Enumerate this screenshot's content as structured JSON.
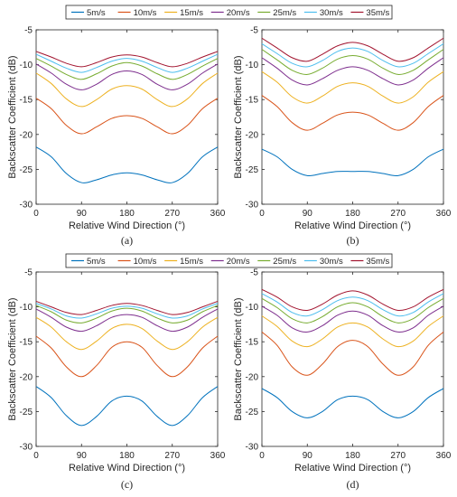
{
  "legends": [
    {
      "entries": [
        "5m/s",
        "10m/s",
        "15m/s",
        "20m/s",
        "25m/s",
        "30m/s",
        "35m/s"
      ],
      "colors": [
        "#0072BD",
        "#D95319",
        "#EDB120",
        "#7E2F8E",
        "#77AC30",
        "#4DBEEE",
        "#A2142F"
      ]
    },
    {
      "entries": [
        "5m/s",
        "10m/s",
        "15m/s",
        "20m/s",
        "25m/s",
        "30m/s",
        "35m/s"
      ],
      "colors": [
        "#0072BD",
        "#D95319",
        "#EDB120",
        "#7E2F8E",
        "#77AC30",
        "#4DBEEE",
        "#A2142F"
      ]
    }
  ],
  "chart_data": [
    {
      "type": "line",
      "panel": "a",
      "caption": "(a)",
      "xlabel": "Relative Wind Direction (°)",
      "ylabel": "Backscatter Coefficient (dB)",
      "xlim": [
        0,
        360
      ],
      "ylim": [
        -30,
        -5
      ],
      "xticks": [
        0,
        90,
        180,
        270,
        360
      ],
      "yticks": [
        -30,
        -25,
        -20,
        -15,
        -10,
        -5
      ],
      "x": [
        0,
        30,
        60,
        90,
        120,
        150,
        180,
        210,
        240,
        270,
        300,
        330,
        360
      ],
      "series": [
        {
          "name": "5m/s",
          "values": [
            -21.8,
            -23.2,
            -25.6,
            -26.9,
            -26.5,
            -25.8,
            -25.5,
            -25.8,
            -26.5,
            -26.9,
            -25.6,
            -23.2,
            -21.8
          ]
        },
        {
          "name": "10m/s",
          "values": [
            -14.8,
            -16.3,
            -18.7,
            -19.9,
            -18.9,
            -17.7,
            -17.3,
            -17.7,
            -18.9,
            -19.9,
            -18.7,
            -16.3,
            -14.8
          ]
        },
        {
          "name": "15m/s",
          "values": [
            -11.2,
            -12.7,
            -14.9,
            -16.0,
            -15.0,
            -13.5,
            -13.0,
            -13.5,
            -15.0,
            -16.0,
            -14.9,
            -12.7,
            -11.2
          ]
        },
        {
          "name": "20m/s",
          "values": [
            -9.9,
            -11.2,
            -12.8,
            -13.6,
            -12.8,
            -11.4,
            -10.9,
            -11.4,
            -12.8,
            -13.6,
            -12.8,
            -11.2,
            -9.9
          ]
        },
        {
          "name": "25m/s",
          "values": [
            -9.1,
            -10.2,
            -11.4,
            -12.1,
            -11.3,
            -10.2,
            -9.7,
            -10.2,
            -11.3,
            -12.1,
            -11.4,
            -10.2,
            -9.1
          ]
        },
        {
          "name": "30m/s",
          "values": [
            -8.5,
            -9.5,
            -10.5,
            -11.1,
            -10.4,
            -9.5,
            -9.1,
            -9.5,
            -10.4,
            -11.1,
            -10.5,
            -9.5,
            -8.5
          ]
        },
        {
          "name": "35m/s",
          "values": [
            -8.1,
            -8.9,
            -9.8,
            -10.3,
            -9.7,
            -8.9,
            -8.6,
            -8.9,
            -9.7,
            -10.3,
            -9.8,
            -8.9,
            -8.1
          ]
        }
      ]
    },
    {
      "type": "line",
      "panel": "b",
      "caption": "(b)",
      "xlabel": "Relative Wind Direction (°)",
      "ylabel": "Backscatter Coefficient (dB)",
      "xlim": [
        0,
        360
      ],
      "ylim": [
        -30,
        -5
      ],
      "xticks": [
        0,
        90,
        180,
        270,
        360
      ],
      "yticks": [
        -30,
        -25,
        -20,
        -15,
        -10,
        -5
      ],
      "x": [
        0,
        30,
        60,
        90,
        120,
        150,
        180,
        210,
        240,
        270,
        300,
        330,
        360
      ],
      "series": [
        {
          "name": "5m/s",
          "values": [
            -22.1,
            -23.2,
            -25.0,
            -25.9,
            -25.6,
            -25.3,
            -25.3,
            -25.3,
            -25.6,
            -25.9,
            -25.0,
            -23.2,
            -22.1
          ]
        },
        {
          "name": "10m/s",
          "values": [
            -14.4,
            -16.0,
            -18.3,
            -19.4,
            -18.4,
            -17.2,
            -16.8,
            -17.2,
            -18.4,
            -19.4,
            -18.3,
            -16.0,
            -14.4
          ]
        },
        {
          "name": "15m/s",
          "values": [
            -11.0,
            -12.5,
            -14.6,
            -15.5,
            -14.5,
            -13.1,
            -12.6,
            -13.1,
            -14.5,
            -15.5,
            -14.6,
            -12.5,
            -11.0
          ]
        },
        {
          "name": "20m/s",
          "values": [
            -9.0,
            -10.5,
            -12.2,
            -12.9,
            -12.0,
            -10.8,
            -10.3,
            -10.8,
            -12.0,
            -12.9,
            -12.2,
            -10.5,
            -9.0
          ]
        },
        {
          "name": "25m/s",
          "values": [
            -7.8,
            -9.3,
            -10.8,
            -11.4,
            -10.5,
            -9.2,
            -8.7,
            -9.2,
            -10.5,
            -11.4,
            -10.8,
            -9.3,
            -7.8
          ]
        },
        {
          "name": "30m/s",
          "values": [
            -7.0,
            -8.4,
            -9.8,
            -10.3,
            -9.4,
            -8.1,
            -7.6,
            -8.1,
            -9.4,
            -10.3,
            -9.8,
            -8.4,
            -7.0
          ]
        },
        {
          "name": "35m/s",
          "values": [
            -6.2,
            -7.6,
            -9.0,
            -9.5,
            -8.5,
            -7.3,
            -6.8,
            -7.3,
            -8.5,
            -9.5,
            -9.0,
            -7.6,
            -6.2
          ]
        }
      ]
    },
    {
      "type": "line",
      "panel": "c",
      "caption": "(c)",
      "xlabel": "Relative Wind Direction (°)",
      "ylabel": "Backscatter Coefficient (dB)",
      "xlim": [
        0,
        360
      ],
      "ylim": [
        -30,
        -5
      ],
      "xticks": [
        0,
        90,
        180,
        270,
        360
      ],
      "yticks": [
        -30,
        -25,
        -20,
        -15,
        -10,
        -5
      ],
      "x": [
        0,
        30,
        60,
        90,
        120,
        150,
        180,
        210,
        240,
        270,
        300,
        330,
        360
      ],
      "series": [
        {
          "name": "5m/s",
          "values": [
            -21.4,
            -23.0,
            -25.6,
            -27.0,
            -25.7,
            -23.5,
            -22.8,
            -23.5,
            -25.7,
            -27.0,
            -25.6,
            -23.0,
            -21.4
          ]
        },
        {
          "name": "10m/s",
          "values": [
            -14.2,
            -15.9,
            -18.6,
            -20.0,
            -18.4,
            -15.8,
            -15.0,
            -15.8,
            -18.4,
            -20.0,
            -18.6,
            -15.9,
            -14.2
          ]
        },
        {
          "name": "15m/s",
          "values": [
            -11.5,
            -12.9,
            -15.0,
            -16.1,
            -14.9,
            -13.1,
            -12.5,
            -13.1,
            -14.9,
            -16.1,
            -15.0,
            -12.9,
            -11.5
          ]
        },
        {
          "name": "20m/s",
          "values": [
            -10.3,
            -11.5,
            -12.9,
            -13.5,
            -12.7,
            -11.5,
            -11.1,
            -11.5,
            -12.7,
            -13.5,
            -12.9,
            -11.5,
            -10.3
          ]
        },
        {
          "name": "25m/s",
          "values": [
            -9.8,
            -10.7,
            -11.9,
            -12.3,
            -11.6,
            -10.6,
            -10.2,
            -10.6,
            -11.6,
            -12.3,
            -11.9,
            -10.7,
            -9.8
          ]
        },
        {
          "name": "30m/s",
          "values": [
            -9.5,
            -10.3,
            -11.3,
            -11.6,
            -11.0,
            -10.2,
            -9.9,
            -10.2,
            -11.0,
            -11.6,
            -11.3,
            -10.3,
            -9.5
          ]
        },
        {
          "name": "35m/s",
          "values": [
            -9.2,
            -10.0,
            -10.8,
            -11.1,
            -10.5,
            -9.8,
            -9.5,
            -9.8,
            -10.5,
            -11.1,
            -10.8,
            -10.0,
            -9.2
          ]
        }
      ]
    },
    {
      "type": "line",
      "panel": "d",
      "caption": "(d)",
      "xlabel": "Relative Wind Direction (°)",
      "ylabel": "Backscatter Coefficient (dB)",
      "xlim": [
        0,
        360
      ],
      "ylim": [
        -30,
        -5
      ],
      "xticks": [
        0,
        90,
        180,
        270,
        360
      ],
      "yticks": [
        -30,
        -25,
        -20,
        -15,
        -10,
        -5
      ],
      "x": [
        0,
        30,
        60,
        90,
        120,
        150,
        180,
        210,
        240,
        270,
        300,
        330,
        360
      ],
      "series": [
        {
          "name": "5m/s",
          "values": [
            -21.7,
            -23.0,
            -25.0,
            -25.9,
            -25.0,
            -23.3,
            -22.8,
            -23.3,
            -25.0,
            -25.9,
            -25.0,
            -23.0,
            -21.7
          ]
        },
        {
          "name": "10m/s",
          "values": [
            -13.6,
            -15.5,
            -18.6,
            -19.8,
            -18.2,
            -15.7,
            -14.8,
            -15.7,
            -18.2,
            -19.8,
            -18.6,
            -15.5,
            -13.6
          ]
        },
        {
          "name": "15m/s",
          "values": [
            -11.3,
            -12.8,
            -14.9,
            -15.7,
            -14.6,
            -12.9,
            -12.3,
            -12.9,
            -14.6,
            -15.7,
            -14.9,
            -12.8,
            -11.3
          ]
        },
        {
          "name": "20m/s",
          "values": [
            -9.9,
            -11.2,
            -13.0,
            -13.6,
            -12.7,
            -11.2,
            -10.6,
            -11.2,
            -12.7,
            -13.6,
            -13.0,
            -11.2,
            -9.9
          ]
        },
        {
          "name": "25m/s",
          "values": [
            -8.8,
            -10.1,
            -11.7,
            -12.3,
            -11.4,
            -10.0,
            -9.4,
            -10.0,
            -11.4,
            -12.3,
            -11.7,
            -10.1,
            -8.8
          ]
        },
        {
          "name": "30m/s",
          "values": [
            -8.1,
            -9.3,
            -10.8,
            -11.3,
            -10.4,
            -9.1,
            -8.6,
            -9.1,
            -10.4,
            -11.3,
            -10.8,
            -9.3,
            -8.1
          ]
        },
        {
          "name": "35m/s",
          "values": [
            -7.5,
            -8.6,
            -10.0,
            -10.5,
            -9.6,
            -8.3,
            -7.7,
            -8.3,
            -9.6,
            -10.5,
            -10.0,
            -8.6,
            -7.5
          ]
        }
      ]
    }
  ]
}
